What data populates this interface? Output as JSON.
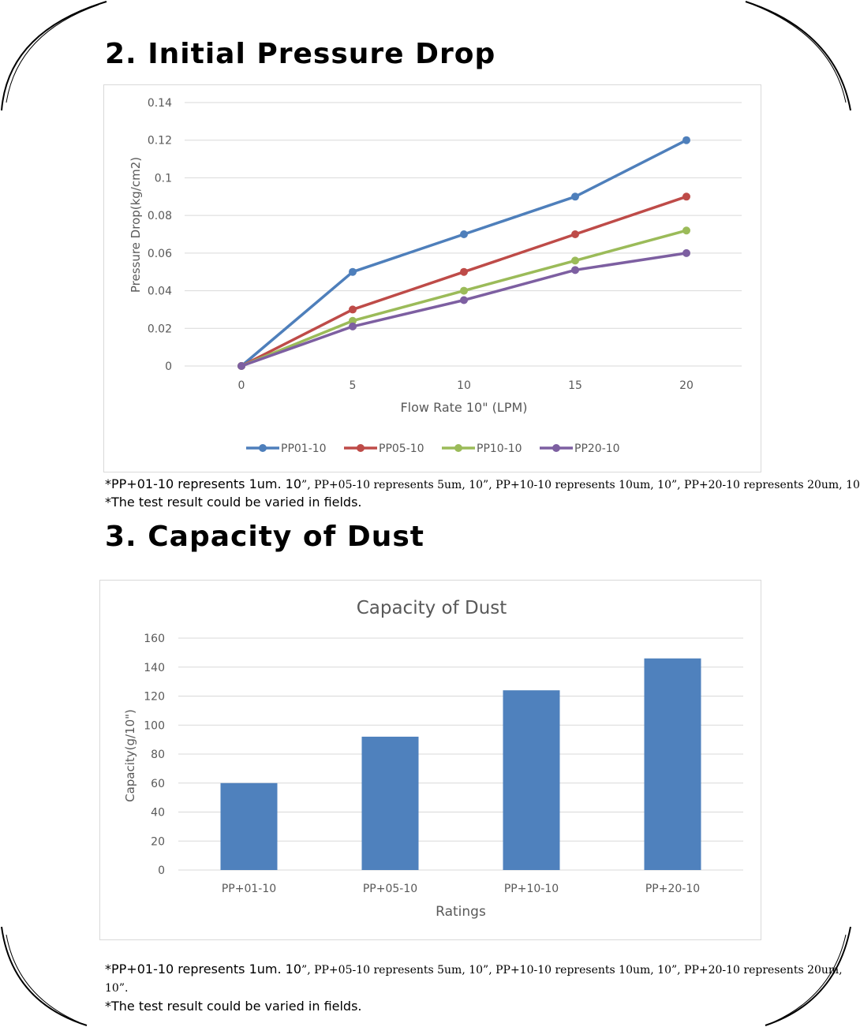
{
  "sections": {
    "pressure": {
      "title": "2. Initial Pressure Drop"
    },
    "dust": {
      "title": "3. Capacity of Dust"
    }
  },
  "notes": {
    "pressure": {
      "line1_a": "*PP+01-10 represents 1um. 10",
      "line1_b": "”, PP+05-10 represents 5um, 10”, PP+10-10 represents 10um, 10”, PP+20-10 represents 20um, 10",
      "line2": "*The test result could be varied in fields."
    },
    "dust": {
      "line1_a": "*PP+01-10 represents 1um. 10",
      "line1_b": "”, PP+05-10 represents 5um, 10”, PP+10-10 represents ",
      "line1_c": "10um, 10”, PP+20-10 represents 20um,",
      "line2": "10”.",
      "line3": "*The test result could be varied in fields."
    }
  },
  "colors": {
    "blue": "#4e7fbb",
    "red": "#be4b48",
    "green": "#9bbb59",
    "purple": "#7d5fa1",
    "bar": "#4f81bd",
    "grid": "#d9d9d9",
    "axis_text": "#595959"
  },
  "chart_data": [
    {
      "type": "line",
      "title": "",
      "xlabel": "Flow Rate 10\" (LPM)",
      "ylabel": "Pressure Drop(kg/cm2)",
      "x": [
        0,
        5,
        10,
        15,
        20
      ],
      "xlim": [
        0,
        20
      ],
      "ylim": [
        0,
        0.14
      ],
      "yticks": [
        "0",
        "0.02",
        "0.04",
        "0.06",
        "0.08",
        "0.1",
        "0.12",
        "0.14"
      ],
      "xticks": [
        "0",
        "5",
        "10",
        "15",
        "20"
      ],
      "grid": true,
      "legend": "bottom",
      "series": [
        {
          "name": "PP01-10",
          "color": "#4e7fbb",
          "values": [
            0,
            0.05,
            0.07,
            0.09,
            0.12
          ]
        },
        {
          "name": "PP05-10",
          "color": "#be4b48",
          "values": [
            0,
            0.03,
            0.05,
            0.07,
            0.09
          ]
        },
        {
          "name": "PP10-10",
          "color": "#9bbb59",
          "values": [
            0,
            0.024,
            0.04,
            0.056,
            0.072
          ]
        },
        {
          "name": "PP20-10",
          "color": "#7d5fa1",
          "values": [
            0,
            0.021,
            0.035,
            0.051,
            0.06
          ]
        }
      ]
    },
    {
      "type": "bar",
      "title": "Capacity of Dust",
      "xlabel": "Ratings",
      "ylabel": "Capacity(g/10\")",
      "categories": [
        "PP+01-10",
        "PP+05-10",
        "PP+10-10",
        "PP+20-10"
      ],
      "values": [
        60,
        92,
        124,
        146
      ],
      "ylim": [
        0,
        160
      ],
      "yticks": [
        "0",
        "20",
        "40",
        "60",
        "80",
        "100",
        "120",
        "140",
        "160"
      ],
      "grid": true,
      "color": "#4f81bd"
    }
  ]
}
